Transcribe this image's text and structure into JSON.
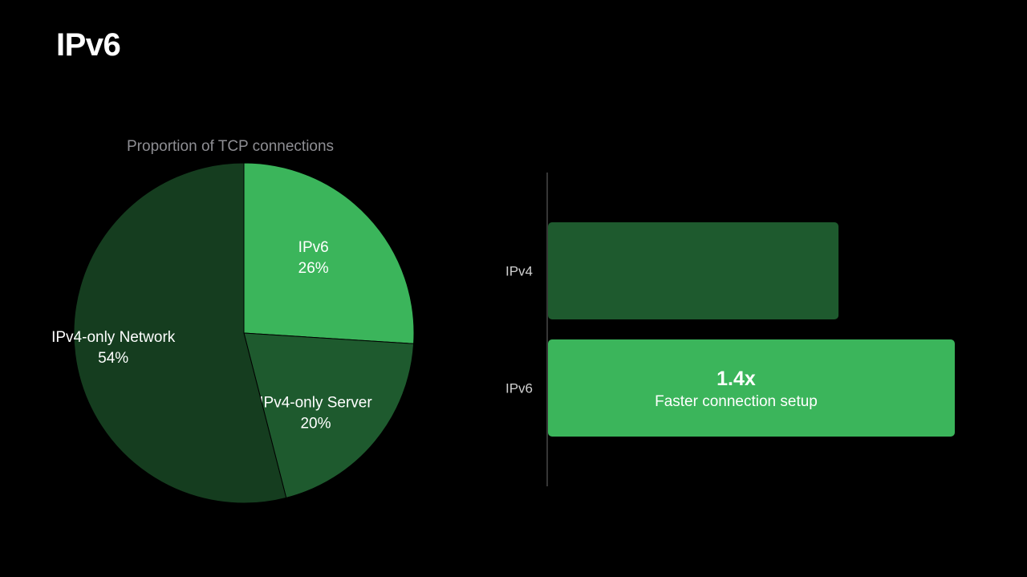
{
  "slide": {
    "title": "IPv6"
  },
  "colors": {
    "background": "#000000",
    "ipv6_green": "#3bb55b",
    "ipv4_server_green": "#1e5a2e",
    "ipv4_network_green": "#153d1f",
    "bar_ipv4": "#1e5a2e",
    "bar_ipv6": "#3bb55b",
    "muted_text": "#8e8e93"
  },
  "chart_data": [
    {
      "type": "pie",
      "title": "Proportion of TCP connections",
      "unit": "%",
      "slices": [
        {
          "label": "IPv6",
          "value": 26,
          "value_label": "26%",
          "color": "#3bb55b"
        },
        {
          "label": "IPv4-only Server",
          "value": 20,
          "value_label": "20%",
          "color": "#1e5a2e"
        },
        {
          "label": "IPv4-only Network",
          "value": 54,
          "value_label": "54%",
          "color": "#153d1f"
        }
      ]
    },
    {
      "type": "bar",
      "orientation": "horizontal",
      "categories": [
        "IPv4",
        "IPv6"
      ],
      "values": [
        1.0,
        1.4
      ],
      "xlim": [
        0,
        1.4
      ],
      "annotation": {
        "category": "IPv6",
        "headline": "1.4x",
        "caption": "Faster connection setup"
      },
      "colors": [
        "#1e5a2e",
        "#3bb55b"
      ]
    }
  ]
}
